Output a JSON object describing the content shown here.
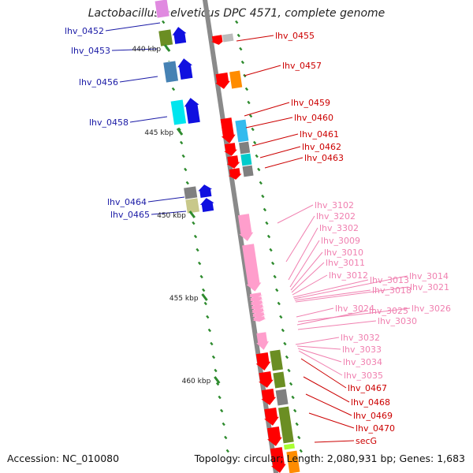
{
  "map_title": "Lactobacillus helveticus DPC 4571, complete genome",
  "footer": {
    "accession": "Accession: NC_010080",
    "summary": "Topology: circular; Length: 2,080,931 bp; Genes: 1,683"
  },
  "colors": {
    "backbone": "#8a8a8a",
    "tick": "#2e8b2e",
    "left_label": "#1a1aa6",
    "right_label": "#cc0000",
    "pink_label": "#f080b0",
    "scale_text": "#222222"
  },
  "scale": {
    "unit": "kbp",
    "ticks": [
      {
        "label": "440 kbp",
        "value": 440
      },
      {
        "label": "445 kbp",
        "value": 445
      },
      {
        "label": "450 kbp",
        "value": 450
      },
      {
        "label": "455 kbp",
        "value": 455
      },
      {
        "label": "460 kbp",
        "value": 460
      }
    ]
  },
  "left_genes": [
    {
      "name": "lhv_0452"
    },
    {
      "name": "lhv_0453"
    },
    {
      "name": "lhv_0456"
    },
    {
      "name": "lhv_0458"
    },
    {
      "name": "lhv_0464"
    },
    {
      "name": "lhv_0465"
    }
  ],
  "right_genes": [
    {
      "name": "lhv_0455",
      "group": "red"
    },
    {
      "name": "lhv_0457",
      "group": "red"
    },
    {
      "name": "lhv_0459",
      "group": "red"
    },
    {
      "name": "lhv_0460",
      "group": "red"
    },
    {
      "name": "lhv_0461",
      "group": "red"
    },
    {
      "name": "lhv_0462",
      "group": "red"
    },
    {
      "name": "lhv_0463",
      "group": "red"
    },
    {
      "name": "lhv_3102",
      "group": "pink"
    },
    {
      "name": "lhv_3202",
      "group": "pink"
    },
    {
      "name": "lhv_3302",
      "group": "pink"
    },
    {
      "name": "lhv_3009",
      "group": "pink"
    },
    {
      "name": "lhv_3010",
      "group": "pink"
    },
    {
      "name": "lhv_3011",
      "group": "pink"
    },
    {
      "name": "lhv_3012",
      "group": "pink"
    },
    {
      "name": "lhv_3013",
      "group": "pink"
    },
    {
      "name": "lhv_3014",
      "group": "pink"
    },
    {
      "name": "lhv_3018",
      "group": "pink"
    },
    {
      "name": "lhv_3021",
      "group": "pink"
    },
    {
      "name": "lhv_3024",
      "group": "pink"
    },
    {
      "name": "lhv_3025",
      "group": "pink"
    },
    {
      "name": "lhv_3026",
      "group": "pink"
    },
    {
      "name": "lhv_3030",
      "group": "pink"
    },
    {
      "name": "lhv_3032",
      "group": "pink"
    },
    {
      "name": "lhv_3033",
      "group": "pink"
    },
    {
      "name": "lhv_3034",
      "group": "pink"
    },
    {
      "name": "lhv_3035",
      "group": "pink"
    },
    {
      "name": "lhv_0467",
      "group": "red"
    },
    {
      "name": "lhv_0468",
      "group": "red"
    },
    {
      "name": "lhv_0469",
      "group": "red"
    },
    {
      "name": "lhv_0470",
      "group": "red"
    },
    {
      "name": "secG",
      "group": "red"
    }
  ]
}
